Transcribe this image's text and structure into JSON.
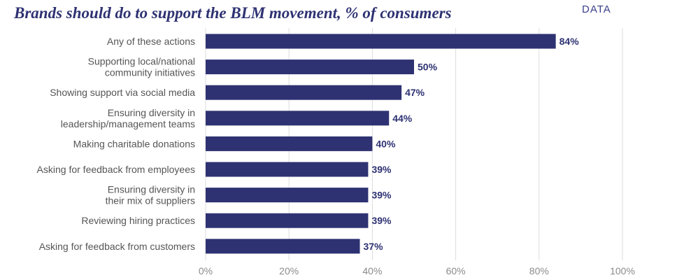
{
  "header": {
    "title": "Brands should do to support the BLM movement, % of consumers",
    "tag": "DATA"
  },
  "colors": {
    "bar": "#2e3272",
    "value_label": "#2e3272",
    "category_label": "#555555",
    "tick_label": "#8a8a8a",
    "grid": "#dddddd"
  },
  "chart_data": {
    "type": "bar",
    "orientation": "horizontal",
    "title": "Brands should do to support the BLM movement, % of consumers",
    "categories": [
      [
        "Any of these actions"
      ],
      [
        "Supporting local/national",
        "community initiatives"
      ],
      [
        "Showing support via social media"
      ],
      [
        "Ensuring diversity in",
        "leadership/management teams"
      ],
      [
        "Making charitable donations"
      ],
      [
        "Asking for feedback from employees"
      ],
      [
        "Ensuring diversity in",
        "their mix of suppliers"
      ],
      [
        "Reviewing hiring practices"
      ],
      [
        "Asking for feedback from customers"
      ]
    ],
    "values": [
      84,
      50,
      47,
      44,
      40,
      39,
      39,
      39,
      37
    ],
    "value_labels": [
      "84%",
      "50%",
      "47%",
      "44%",
      "40%",
      "39%",
      "39%",
      "39%",
      "37%"
    ],
    "xlim": [
      0,
      100
    ],
    "xticks": [
      0,
      20,
      40,
      60,
      80,
      100
    ],
    "xtick_labels": [
      "0%",
      "20%",
      "40%",
      "60%",
      "80%",
      "100%"
    ],
    "grid": true,
    "legend": "none"
  }
}
